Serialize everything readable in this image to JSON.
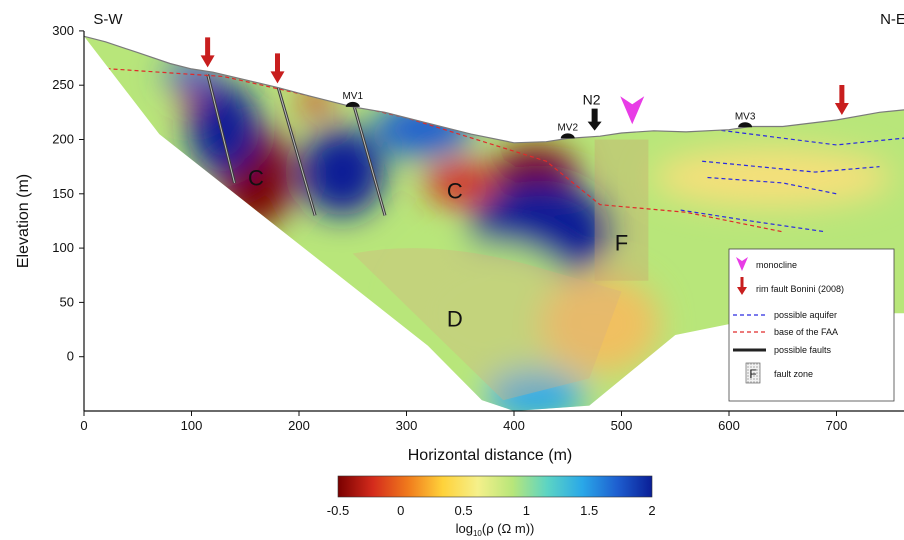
{
  "chart_data": {
    "type": "heatmap",
    "subtype": "electrical resistivity tomography section",
    "xlabel": "Horizontal distance (m)",
    "ylabel": "Elevation (m)",
    "xlim": [
      0,
      770
    ],
    "ylim": [
      -50,
      300
    ],
    "xticks": [
      0,
      100,
      200,
      300,
      400,
      500,
      600,
      700
    ],
    "yticks": [
      0,
      50,
      100,
      150,
      200,
      250,
      300
    ],
    "orientation_left": "S-W",
    "orientation_right": "N-E",
    "topography": {
      "x": [
        0,
        20,
        50,
        80,
        100,
        120,
        150,
        180,
        210,
        250,
        280,
        320,
        360,
        400,
        430,
        450,
        480,
        500,
        530,
        560,
        600,
        620,
        650,
        700,
        740,
        770
      ],
      "y": [
        295,
        290,
        280,
        270,
        265,
        262,
        255,
        248,
        240,
        230,
        225,
        215,
        205,
        197,
        198,
        201,
        203,
        206,
        208,
        207,
        209,
        212,
        212,
        218,
        225,
        228
      ]
    },
    "section_base": {
      "x": [
        70,
        320,
        370,
        400,
        470,
        550,
        650,
        770
      ],
      "y": [
        205,
        10,
        -40,
        -50,
        -45,
        20,
        40,
        40
      ]
    },
    "colorbar": {
      "ticks": [
        -0.5,
        0,
        0.5,
        1,
        1.5,
        2
      ],
      "range": [
        -0.5,
        2
      ],
      "label": "log10(ρ (Ω m))",
      "colors": [
        "#7a0000",
        "#d42b1c",
        "#f07a1c",
        "#ffd23a",
        "#f5f08a",
        "#b8e67a",
        "#5cd4c4",
        "#2aa8e8",
        "#1e5fd0",
        "#0a1e96"
      ]
    },
    "resistivity_bodies": [
      {
        "x": 160,
        "y": 165,
        "log_rho": -0.4
      },
      {
        "x": 215,
        "y": 235,
        "log_rho": -0.2
      },
      {
        "x": 110,
        "y": 240,
        "log_rho": -0.2
      },
      {
        "x": 420,
        "y": 170,
        "log_rho": -0.5
      },
      {
        "x": 350,
        "y": 160,
        "log_rho": -0.2
      },
      {
        "x": 130,
        "y": 210,
        "log_rho": 2.0
      },
      {
        "x": 240,
        "y": 170,
        "log_rho": 2.0
      },
      {
        "x": 425,
        "y": 115,
        "log_rho": 2.0
      },
      {
        "x": 315,
        "y": 210,
        "log_rho": 1.8
      },
      {
        "x": 380,
        "y": 40,
        "log_rho": 0.9
      }
    ],
    "zone_labels": [
      {
        "text": "C",
        "x": 160,
        "y": 165
      },
      {
        "text": "C",
        "x": 345,
        "y": 153
      },
      {
        "text": "F",
        "x": 500,
        "y": 105
      },
      {
        "text": "D",
        "x": 345,
        "y": 35
      }
    ],
    "markers": [
      {
        "label": "MV1",
        "x": 250
      },
      {
        "label": "MV2",
        "x": 450
      },
      {
        "label": "MV3",
        "x": 615
      }
    ],
    "n2_marker": {
      "label": "N2",
      "x": 475
    },
    "rim_fault_arrows_x": [
      115,
      180,
      705
    ],
    "monocline_x": 510,
    "legend": {
      "placement": "right",
      "items": [
        {
          "label": "monocline",
          "symbol": "magenta-triangle-icon",
          "color": "#e83ce6"
        },
        {
          "label": "rim fault Bonini (2008)",
          "symbol": "red-arrow-icon",
          "color": "#c81e1e"
        },
        {
          "label": "possible aquifer",
          "symbol": "dashed-line",
          "color": "#2a2ae0"
        },
        {
          "label": "base of the FAA",
          "symbol": "dashed-line",
          "color": "#e02a2a"
        },
        {
          "label": "possible faults",
          "symbol": "solid-line",
          "color": "#222222"
        },
        {
          "label": "fault zone",
          "symbol": "hatched-box-icon",
          "color": "#c8c8c8"
        }
      ]
    }
  }
}
